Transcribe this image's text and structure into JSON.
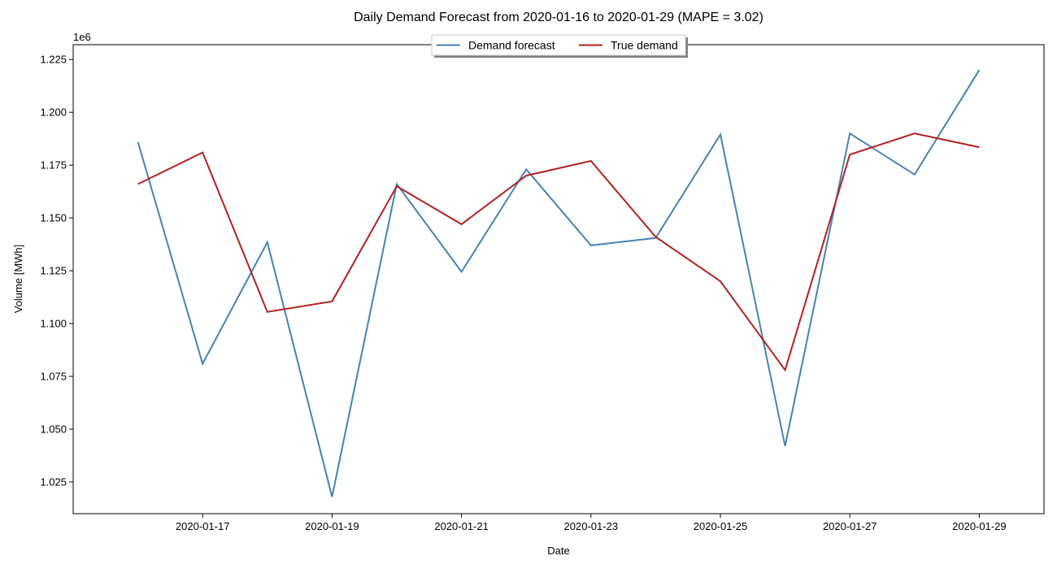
{
  "chart_data": {
    "type": "line",
    "title": "Daily Demand Forecast from 2020-01-16 to 2020-01-29 (MAPE = 3.02)",
    "xlabel": "Date",
    "ylabel": "Volume [MWh]",
    "y_offset_label": "1e6",
    "y_scale": 1000000,
    "x": [
      "2020-01-16",
      "2020-01-17",
      "2020-01-18",
      "2020-01-19",
      "2020-01-20",
      "2020-01-21",
      "2020-01-22",
      "2020-01-23",
      "2020-01-24",
      "2020-01-25",
      "2020-01-26",
      "2020-01-27",
      "2020-01-28",
      "2020-01-29"
    ],
    "xlim": [
      "2020-01-15",
      "2020-01-30"
    ],
    "x_ticks": [
      "2020-01-17",
      "2020-01-19",
      "2020-01-21",
      "2020-01-23",
      "2020-01-25",
      "2020-01-27",
      "2020-01-29"
    ],
    "ylim": [
      1010000,
      1232000
    ],
    "y_ticks": [
      1025000,
      1050000,
      1075000,
      1100000,
      1125000,
      1150000,
      1175000,
      1200000,
      1225000
    ],
    "y_tick_labels": [
      "1.025",
      "1.050",
      "1.075",
      "1.100",
      "1.125",
      "1.150",
      "1.175",
      "1.200",
      "1.225"
    ],
    "grid": false,
    "legend_position": "top-center",
    "series": [
      {
        "name": "Demand forecast",
        "color": "#4682b4",
        "values": [
          1186000,
          1081000,
          1138500,
          1018000,
          1166000,
          1124500,
          1173000,
          1137000,
          1140500,
          1189500,
          1042000,
          1190000,
          1170500,
          1220000
        ]
      },
      {
        "name": "True demand",
        "color": "#b22222",
        "values": [
          1166000,
          1181000,
          1105500,
          1110500,
          1165000,
          1147000,
          1170000,
          1177000,
          1141000,
          1120000,
          1078000,
          1180000,
          1190000,
          1183500
        ]
      }
    ]
  }
}
